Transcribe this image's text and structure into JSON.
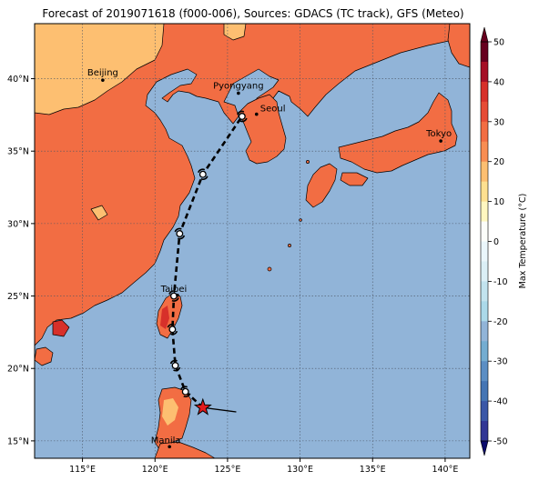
{
  "title": "Forecast of 2019071618 (f000-006), Sources: GDACS (TC track), GFS (Meteo)",
  "map": {
    "lon_range": [
      111.7,
      141.7
    ],
    "lat_range": [
      13.8,
      43.8
    ],
    "lon_ticks": [
      {
        "value": 115,
        "label": "115°E"
      },
      {
        "value": 120,
        "label": "120°E"
      },
      {
        "value": 125,
        "label": "125°E"
      },
      {
        "value": 130,
        "label": "130°E"
      },
      {
        "value": 135,
        "label": "135°E"
      },
      {
        "value": 140,
        "label": "140°E"
      }
    ],
    "lat_ticks": [
      {
        "value": 15,
        "label": "15°N"
      },
      {
        "value": 20,
        "label": "20°N"
      },
      {
        "value": 25,
        "label": "25°N"
      },
      {
        "value": 30,
        "label": "30°N"
      },
      {
        "value": 35,
        "label": "35°N"
      },
      {
        "value": 40,
        "label": "40°N"
      }
    ],
    "grid": true,
    "colors": {
      "ocean": "#91b4d8",
      "land_warm": "#f26d43",
      "land_hot": "#d7302a",
      "land_mild": "#fdbf71",
      "coast": "#000000"
    }
  },
  "cities": [
    {
      "name": "Beijing",
      "lon": 116.4,
      "lat": 39.9
    },
    {
      "name": "Pyongyang",
      "lon": 125.75,
      "lat": 39.0
    },
    {
      "name": "Seoul",
      "lon": 127.0,
      "lat": 37.55
    },
    {
      "name": "Tokyo",
      "lon": 139.7,
      "lat": 35.7
    },
    {
      "name": "Taipei",
      "lon": 121.55,
      "lat": 25.05
    },
    {
      "name": "Manila",
      "lon": 121.0,
      "lat": 14.6
    }
  ],
  "tc_track": {
    "current": {
      "lon": 123.3,
      "lat": 17.3
    },
    "motion_vector_end": {
      "lon": 125.6,
      "lat": 17.0
    },
    "forecast_points": [
      {
        "lon": 122.1,
        "lat": 18.4
      },
      {
        "lon": 121.4,
        "lat": 20.2
      },
      {
        "lon": 121.2,
        "lat": 22.7
      },
      {
        "lon": 121.3,
        "lat": 25.0
      },
      {
        "lon": 121.7,
        "lat": 29.3
      },
      {
        "lon": 123.3,
        "lat": 33.4
      },
      {
        "lon": 126.0,
        "lat": 37.4
      }
    ]
  },
  "colorbar": {
    "label": "Max Temperature (°C)",
    "ticks": [
      50,
      40,
      30,
      20,
      10,
      0,
      -10,
      -20,
      -30,
      -40,
      -50
    ],
    "bins": [
      {
        "from": 45,
        "to": 50,
        "color": "#67001f"
      },
      {
        "from": 40,
        "to": 45,
        "color": "#a50f26"
      },
      {
        "from": 35,
        "to": 40,
        "color": "#d7302a"
      },
      {
        "from": 30,
        "to": 35,
        "color": "#e64b35"
      },
      {
        "from": 25,
        "to": 30,
        "color": "#f26d43"
      },
      {
        "from": 20,
        "to": 25,
        "color": "#f88d52"
      },
      {
        "from": 15,
        "to": 20,
        "color": "#fdbf71"
      },
      {
        "from": 10,
        "to": 15,
        "color": "#fee090"
      },
      {
        "from": 5,
        "to": 10,
        "color": "#fff7c0"
      },
      {
        "from": 0,
        "to": 5,
        "color": "#fbfdfa"
      },
      {
        "from": -5,
        "to": 0,
        "color": "#eaf6fb"
      },
      {
        "from": -10,
        "to": -5,
        "color": "#dbeff6"
      },
      {
        "from": -15,
        "to": -10,
        "color": "#c2e3ee"
      },
      {
        "from": -20,
        "to": -15,
        "color": "#abd9e9"
      },
      {
        "from": -25,
        "to": -20,
        "color": "#91b4d8"
      },
      {
        "from": -30,
        "to": -25,
        "color": "#74add1"
      },
      {
        "from": -35,
        "to": -30,
        "color": "#5b8ec4"
      },
      {
        "from": -40,
        "to": -35,
        "color": "#4575b4"
      },
      {
        "from": -45,
        "to": -40,
        "color": "#3a57a7"
      },
      {
        "from": -50,
        "to": -45,
        "color": "#313695"
      }
    ],
    "extend_top_color": "#67001f",
    "extend_bottom_color": "#0a0a6b"
  }
}
